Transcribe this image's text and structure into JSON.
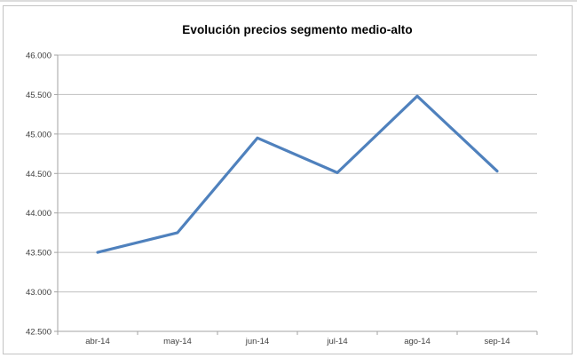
{
  "chart_data": {
    "type": "line",
    "title": "Evolución precios segmento medio-alto",
    "categories": [
      "abr-14",
      "may-14",
      "jun-14",
      "jul-14",
      "ago-14",
      "sep-14"
    ],
    "values": [
      43500,
      43750,
      44950,
      44510,
      45480,
      44530
    ],
    "xlabel": "",
    "ylabel": "",
    "ylim": [
      42500,
      46000
    ],
    "y_step": 500,
    "y_tick_labels": [
      "42.500",
      "43.000",
      "43.500",
      "44.000",
      "44.500",
      "45.000",
      "45.500",
      "46.000"
    ],
    "grid": true,
    "legend": "none",
    "line_color": "#4F81BD",
    "grid_color": "#bfbfbf",
    "axis_color": "#a3a3a3",
    "label_color": "#3f3f3f"
  }
}
